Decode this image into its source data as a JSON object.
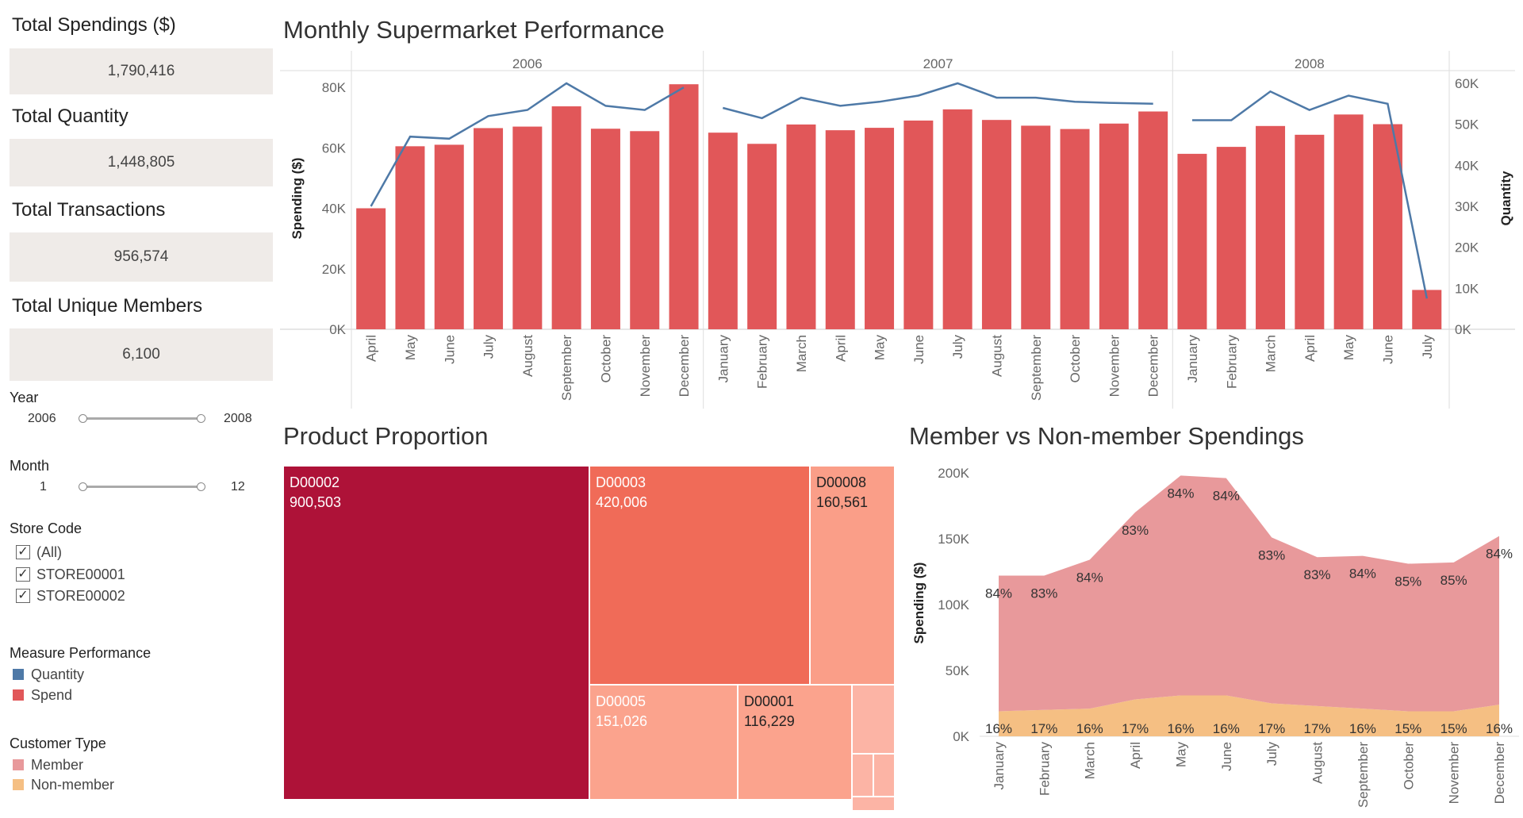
{
  "kpis": [
    {
      "title": "Total Spendings ($)",
      "value": "1,790,416"
    },
    {
      "title": "Total Quantity",
      "value": "1,448,805"
    },
    {
      "title": "Total Transactions",
      "value": "956,574"
    },
    {
      "title": "Total Unique Members",
      "value": "6,100"
    }
  ],
  "filters": {
    "year": {
      "label": "Year",
      "min": "2006",
      "max": "2008"
    },
    "month": {
      "label": "Month",
      "min": "1",
      "max": "12"
    },
    "store": {
      "label": "Store Code",
      "options": [
        "(All)",
        "STORE00001",
        "STORE00002"
      ]
    }
  },
  "legends": {
    "measure": {
      "title": "Measure Performance",
      "items": [
        {
          "name": "Quantity",
          "color": "#4e79a7"
        },
        {
          "name": "Spend",
          "color": "#e15759"
        }
      ]
    },
    "customer": {
      "title": "Customer Type",
      "items": [
        {
          "name": "Member",
          "color": "#e8999b"
        },
        {
          "name": "Non-member",
          "color": "#f5bf83"
        }
      ]
    }
  },
  "titles": {
    "monthly": "Monthly Supermarket Performance",
    "product": "Product Proportion",
    "member": "Member vs Non-member Spendings"
  },
  "chart_data": [
    {
      "type": "bar",
      "id": "monthly",
      "title": "Monthly Supermarket Performance",
      "years": [
        {
          "label": "2006",
          "months": [
            "April",
            "May",
            "June",
            "July",
            "August",
            "September",
            "October",
            "November",
            "December"
          ]
        },
        {
          "label": "2007",
          "months": [
            "January",
            "February",
            "March",
            "April",
            "May",
            "June",
            "July",
            "August",
            "September",
            "October",
            "November",
            "December"
          ]
        },
        {
          "label": "2008",
          "months": [
            "January",
            "February",
            "March",
            "April",
            "May",
            "June",
            "July"
          ]
        }
      ],
      "series": [
        {
          "name": "Spend",
          "axis": "left",
          "values": [
            40000,
            60500,
            61000,
            66500,
            67000,
            73700,
            66300,
            65500,
            81000,
            65000,
            61300,
            67700,
            65800,
            66600,
            69000,
            72700,
            69200,
            67300,
            66200,
            68000,
            72000,
            58000,
            60300,
            67200,
            64300,
            71000,
            67800,
            13000
          ]
        },
        {
          "name": "Quantity",
          "axis": "right",
          "values": [
            30000,
            47000,
            46500,
            52000,
            53500,
            60000,
            54500,
            53500,
            59000,
            54000,
            51500,
            56500,
            54500,
            55500,
            57000,
            60000,
            56500,
            56500,
            55500,
            55200,
            55000,
            51000,
            51000,
            58000,
            53500,
            57000,
            55000,
            7500
          ]
        }
      ],
      "ylabel": "Spending ($)",
      "y2label": "Quantity",
      "ylim": [
        0,
        80000
      ],
      "yticks": [
        "0K",
        "20K",
        "40K",
        "60K",
        "80K"
      ],
      "y2lim": [
        0,
        60000
      ],
      "y2ticks": [
        "0K",
        "10K",
        "20K",
        "30K",
        "40K",
        "50K",
        "60K"
      ]
    },
    {
      "type": "table",
      "subtype": "treemap",
      "id": "product",
      "title": "Product Proportion",
      "items": [
        {
          "name": "D00002",
          "value": "900,503",
          "color": "#ae1238"
        },
        {
          "name": "D00003",
          "value": "420,006",
          "color": "#f06b58"
        },
        {
          "name": "D00008",
          "value": "160,561",
          "color": "#fa9e88"
        },
        {
          "name": "D00005",
          "value": "151,026",
          "color": "#fba38d"
        },
        {
          "name": "D00001",
          "value": "116,229",
          "color": "#fba38d"
        }
      ],
      "small_color": "#fcb4a5"
    },
    {
      "type": "area",
      "id": "member",
      "title": "Member vs Non-member Spendings",
      "categories": [
        "January",
        "February",
        "March",
        "April",
        "May",
        "June",
        "July",
        "August",
        "September",
        "October",
        "November",
        "December"
      ],
      "series": [
        {
          "name": "Member",
          "values": [
            103000,
            102000,
            113000,
            142000,
            167000,
            165000,
            126000,
            113000,
            116000,
            112000,
            113000,
            128000
          ],
          "labels": [
            "84%",
            "83%",
            "84%",
            "83%",
            "84%",
            "84%",
            "83%",
            "83%",
            "84%",
            "85%",
            "85%",
            "84%"
          ]
        },
        {
          "name": "Non-member",
          "values": [
            19000,
            20000,
            21000,
            28000,
            31000,
            31000,
            25000,
            23000,
            21000,
            19000,
            19000,
            24000
          ],
          "labels": [
            "16%",
            "17%",
            "16%",
            "17%",
            "16%",
            "16%",
            "17%",
            "17%",
            "16%",
            "15%",
            "15%",
            "16%"
          ]
        }
      ],
      "ylabel": "Spending ($)",
      "ylim": [
        0,
        200000
      ],
      "yticks": [
        "0K",
        "50K",
        "100K",
        "150K",
        "200K"
      ]
    }
  ]
}
